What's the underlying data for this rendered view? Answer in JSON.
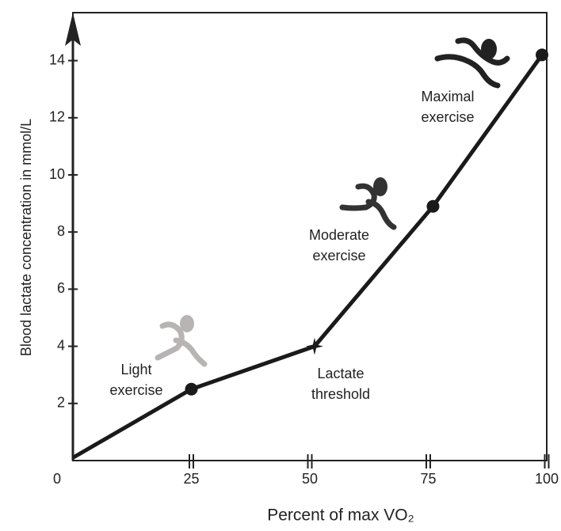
{
  "chart_data": {
    "type": "line",
    "x_label": "Percent of max VO₂",
    "y_label": "Blood lactate concentration in mmol/L",
    "x": [
      0,
      25,
      51,
      76,
      99
    ],
    "series": [
      {
        "color": "#1a1a1a",
        "values": [
          0.1,
          2.5,
          4,
          8.9,
          14.2
        ],
        "markers": [
          "none",
          "circle",
          "star",
          "circle",
          "circle"
        ]
      }
    ],
    "xlim": [
      0,
      100
    ],
    "ylim": [
      0,
      15.5
    ],
    "xticks": [
      0,
      25,
      50,
      75,
      100
    ],
    "yticks": [
      2,
      4,
      6,
      8,
      10,
      12,
      14
    ],
    "annotations": [
      {
        "lines": [
          "Light",
          "exercise"
        ]
      },
      {
        "lines": [
          "Lactate",
          "threshold"
        ]
      },
      {
        "lines": [
          "Moderate",
          "exercise"
        ]
      },
      {
        "lines": [
          "Maximal",
          "exercise"
        ]
      }
    ]
  }
}
